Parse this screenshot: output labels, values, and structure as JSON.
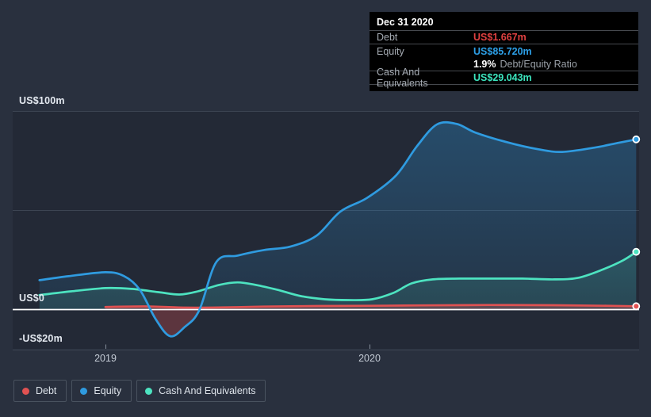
{
  "colors": {
    "background": "#29303e",
    "plot_band": "#242a36",
    "debt": "#e05252",
    "equity": "#2f9be0",
    "cash": "#4de3c0",
    "debt_text": "#e04141",
    "equity_text": "#2da0e8",
    "cash_text": "#3ce6bf",
    "zero_line": "#ffffff",
    "gridline": "#3c4452",
    "tick": "#858e9b",
    "tooltip_background": "#000000"
  },
  "tooltip": {
    "date": "Dec 31 2020",
    "debt_label": "Debt",
    "debt_value": "US$1.667m",
    "equity_label": "Equity",
    "equity_value": "US$85.720m",
    "ratio_value": "1.9%",
    "ratio_label": "Debt/Equity Ratio",
    "cash_label": "Cash And Equivalents",
    "cash_value": "US$29.043m"
  },
  "legend": {
    "items": [
      {
        "label": "Debt",
        "color_key": "debt"
      },
      {
        "label": "Equity",
        "color_key": "equity"
      },
      {
        "label": "Cash And Equivalents",
        "color_key": "cash"
      }
    ]
  },
  "chart_data": {
    "type": "area",
    "title": "",
    "xlabel": "",
    "ylabel": "US$ millions",
    "grid": true,
    "legend_position": "bottom-left",
    "x_axis": {
      "domain": [
        2018.75,
        2021.01
      ],
      "ticks": [
        {
          "value": 2019,
          "label": "2019"
        },
        {
          "value": 2020,
          "label": "2020"
        }
      ]
    },
    "y_axis": {
      "ylim": [
        -25,
        105
      ],
      "gridlines": [
        {
          "value": 100,
          "label": "US$100m",
          "zero": false
        },
        {
          "value": 50,
          "label": "",
          "zero": false
        },
        {
          "value": 0,
          "label": "US$0",
          "zero": true
        },
        {
          "value": -20,
          "label": "-US$20m",
          "zero": false
        }
      ]
    },
    "series": [
      {
        "name": "Equity",
        "color_key": "equity",
        "split_negative": true,
        "end_dot": true,
        "points": [
          [
            2018.75,
            14.8
          ],
          [
            2018.86,
            16.8
          ],
          [
            2019.0,
            18.8
          ],
          [
            2019.07,
            16.9
          ],
          [
            2019.13,
            10.0
          ],
          [
            2019.19,
            -4.8
          ],
          [
            2019.245,
            -13.4
          ],
          [
            2019.3,
            -8.8
          ],
          [
            2019.355,
            -0.4
          ],
          [
            2019.42,
            24.0
          ],
          [
            2019.5,
            27.2
          ],
          [
            2019.6,
            30.0
          ],
          [
            2019.7,
            31.7
          ],
          [
            2019.8,
            37.3
          ],
          [
            2019.89,
            49.4
          ],
          [
            2019.99,
            56.2
          ],
          [
            2020.1,
            67.5
          ],
          [
            2020.18,
            82.3
          ],
          [
            2020.255,
            93.2
          ],
          [
            2020.33,
            93.5
          ],
          [
            2020.4,
            89.2
          ],
          [
            2020.52,
            84.3
          ],
          [
            2020.64,
            80.7
          ],
          [
            2020.73,
            79.4
          ],
          [
            2020.85,
            81.5
          ],
          [
            2020.94,
            83.9
          ],
          [
            2021.01,
            85.72
          ]
        ]
      },
      {
        "name": "Cash And Equivalents",
        "color_key": "cash",
        "split_negative": false,
        "end_dot": true,
        "points": [
          [
            2018.75,
            7.3
          ],
          [
            2018.87,
            9.2
          ],
          [
            2019.0,
            10.8
          ],
          [
            2019.1,
            10.4
          ],
          [
            2019.2,
            8.8
          ],
          [
            2019.28,
            7.6
          ],
          [
            2019.35,
            9.2
          ],
          [
            2019.43,
            12.4
          ],
          [
            2019.5,
            13.7
          ],
          [
            2019.57,
            12.4
          ],
          [
            2019.65,
            10.0
          ],
          [
            2019.74,
            6.8
          ],
          [
            2019.83,
            5.2
          ],
          [
            2019.92,
            4.8
          ],
          [
            2020.01,
            5.2
          ],
          [
            2020.09,
            8.4
          ],
          [
            2020.16,
            13.2
          ],
          [
            2020.24,
            15.2
          ],
          [
            2020.34,
            15.6
          ],
          [
            2020.46,
            15.6
          ],
          [
            2020.58,
            15.6
          ],
          [
            2020.7,
            15.2
          ],
          [
            2020.79,
            16.0
          ],
          [
            2020.88,
            20.0
          ],
          [
            2020.96,
            24.8
          ],
          [
            2021.01,
            29.043
          ]
        ]
      },
      {
        "name": "Debt",
        "color_key": "debt",
        "split_negative": false,
        "end_dot": true,
        "points": [
          [
            2019.0,
            1.3
          ],
          [
            2019.15,
            1.6
          ],
          [
            2019.3,
            1.0
          ],
          [
            2019.45,
            1.1
          ],
          [
            2019.6,
            1.5
          ],
          [
            2019.8,
            1.8
          ],
          [
            2020.0,
            1.9
          ],
          [
            2020.2,
            2.1
          ],
          [
            2020.45,
            2.3
          ],
          [
            2020.7,
            2.2
          ],
          [
            2020.9,
            1.9
          ],
          [
            2021.01,
            1.667
          ]
        ]
      }
    ]
  }
}
